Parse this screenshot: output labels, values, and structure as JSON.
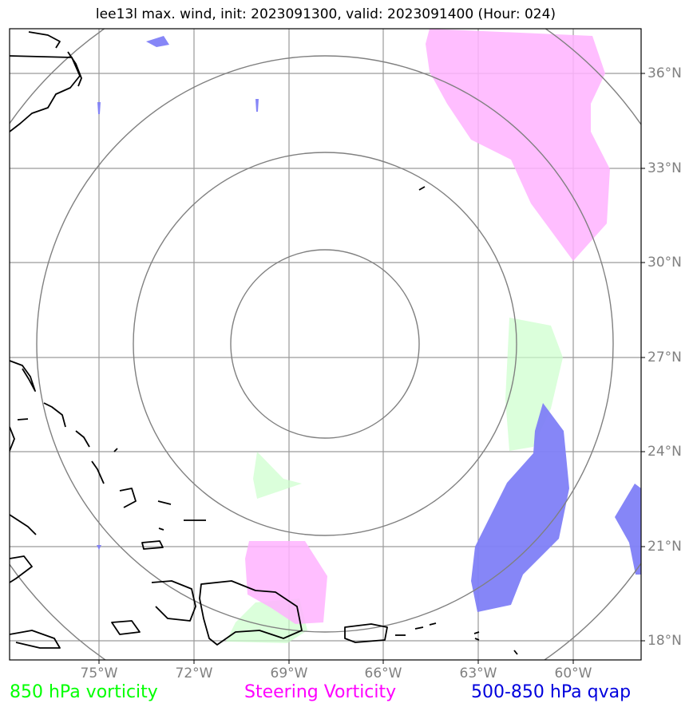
{
  "title": "lee13l max. wind, init: 2023091300, valid: 2023091400 (Hour: 024)",
  "axes": {
    "lon_labels": [
      "75°W",
      "72°W",
      "69°W",
      "66°W",
      "63°W",
      "60°W"
    ],
    "lat_labels": [
      "36°N",
      "33°N",
      "30°N",
      "27°N",
      "24°N",
      "21°N",
      "18°N"
    ]
  },
  "legend": {
    "vorticity_850": {
      "label": "850 hPa vorticity",
      "color": "#00ff00"
    },
    "steering_vorticity": {
      "label": "Steering Vorticity",
      "color": "#ff00ff"
    },
    "qvap_500_850": {
      "label": "500-850 hPa qvap",
      "color": "#0000dd"
    }
  },
  "colors": {
    "vorticity_fill": "#ccffcc",
    "steering_fill": "#ffb3ff",
    "qvap_fill": "#7f7ff7",
    "grid": "#9a9a9a",
    "range_rings": "#808080",
    "coastline": "#000000"
  },
  "icons": [
    "storm-range-rings",
    "coastline"
  ]
}
